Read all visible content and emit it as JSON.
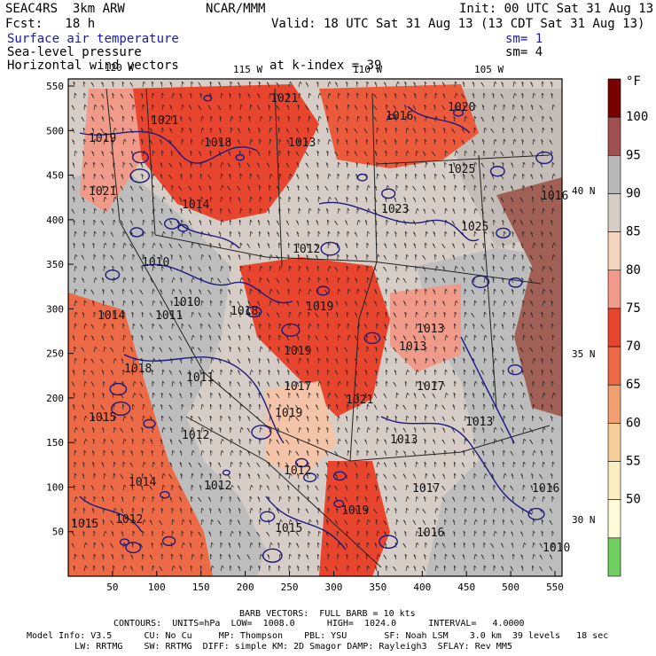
{
  "header": {
    "model": "SEAC4RS  3km ARW",
    "org": "NCAR/MMM",
    "init": "Init: 00 UTC Sat 31 Aug 13",
    "fcst": "Fcst:   18 h",
    "valid": "Valid: 18 UTC Sat 31 Aug 13 (13 CDT Sat 31 Aug 13)",
    "fields": [
      {
        "name": "Surface air temperature",
        "sm": "sm= 1"
      },
      {
        "name": "Sea-level pressure",
        "sm": "sm= 4"
      },
      {
        "name": "Horizontal wind vectors",
        "sm": "at k-index = 39"
      }
    ]
  },
  "axes": {
    "x_ticks": [
      50,
      100,
      150,
      200,
      250,
      300,
      350,
      400,
      450,
      500,
      550
    ],
    "y_ticks": [
      50,
      100,
      150,
      200,
      250,
      300,
      350,
      400,
      450,
      500,
      550
    ],
    "lon_labels": [
      "120 W",
      "115 W",
      "110 W",
      "105 W"
    ],
    "lat_labels": [
      "40 N",
      "35 N",
      "30 N"
    ]
  },
  "colorbar": {
    "unit": "°F",
    "labels": [
      "100",
      "95",
      "90",
      "85",
      "80",
      "75",
      "70",
      "65",
      "60",
      "55",
      "50"
    ],
    "colors": [
      "#7a0000",
      "#a05050",
      "#b8b8b8",
      "#d6cdc6",
      "#f4d6bd",
      "#f09a8a",
      "#e8452e",
      "#ec6a45",
      "#f0a070",
      "#f6cf98",
      "#fdeec2",
      "#fffbd8",
      "#6fcf5f"
    ]
  },
  "pressure_labels": [
    "1019",
    "1021",
    "1016",
    "1020",
    "1021",
    "1018",
    "1013",
    "1025",
    "1021",
    "1014",
    "1023",
    "1025",
    "1016",
    "1012",
    "1013",
    "1010",
    "1010",
    "1011",
    "1018",
    "1019",
    "1014",
    "1019",
    "1018",
    "1013",
    "1017",
    "1017",
    "1019",
    "1021",
    "1011",
    "1015",
    "1013",
    "1013",
    "1012",
    "1012",
    "1012",
    "1017",
    "1016",
    "1012",
    "1014",
    "1015",
    "1015",
    "1019",
    "1016",
    "1010"
  ],
  "footer": {
    "barb": "BARB VECTORS:  FULL BARB = 10 kts",
    "contours": "CONTOURS:  UNITS=hPa  LOW=  1008.0      HIGH=  1024.0      INTERVAL=   4.0000",
    "line1": "Model Info: V3.5      CU: No Cu     MP: Thompson    PBL: YSU       SF: Noah LSM    3.0 km  39 levels   18 sec",
    "line2": "         LW: RRTMG    SW: RRTMG  DIFF: simple KM: 2D Smagor DAMP: Rayleigh3  SFLAY: Rev MM5"
  }
}
